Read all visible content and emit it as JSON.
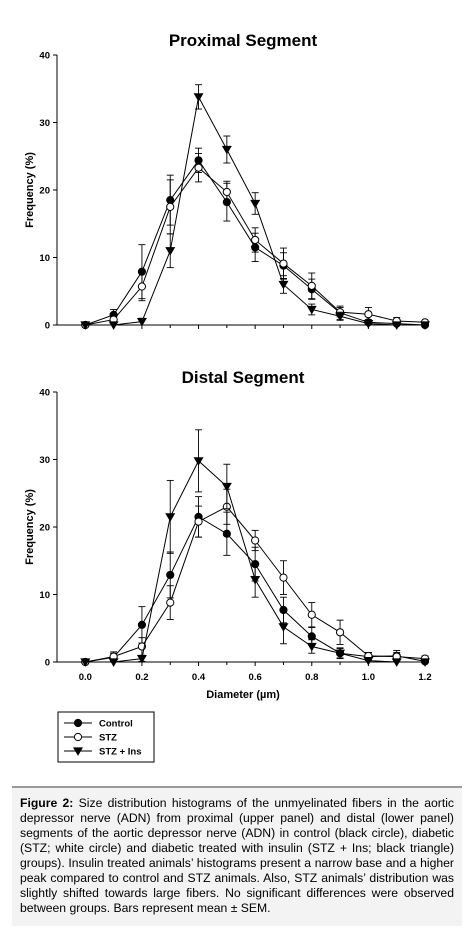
{
  "chart_data": [
    {
      "type": "line",
      "title": "Proximal Segment",
      "xlabel": "Diameter (µm)",
      "ylabel": "Frequency (%)",
      "ylim": [
        0,
        40
      ],
      "xlim": [
        -0.1,
        1.2
      ],
      "yticks": [
        "0",
        "10",
        "20",
        "30",
        "40"
      ],
      "xticks": [],
      "error_bars": true,
      "x": [
        0.0,
        0.1,
        0.2,
        0.3,
        0.4,
        0.5,
        0.6,
        0.7,
        0.8,
        0.9,
        1.0,
        1.1,
        1.2
      ],
      "series": [
        {
          "name": "Control",
          "marker": "filled-circle",
          "values": [
            0,
            1.5,
            7.9,
            18.5,
            24.4,
            18.2,
            11.5,
            8.8,
            5.3,
            1.8,
            0.4,
            0.2,
            0
          ],
          "errors": [
            0.3,
            0.8,
            4.0,
            3.7,
            1.8,
            2.8,
            2.1,
            1.9,
            1.5,
            1.0,
            0.4,
            0.3,
            0.2
          ]
        },
        {
          "name": "STZ",
          "marker": "open-circle",
          "values": [
            0,
            0.8,
            5.7,
            17.5,
            23.3,
            19.7,
            12.6,
            9.1,
            5.8,
            1.9,
            1.6,
            0.6,
            0.4
          ],
          "errors": [
            0.3,
            0.8,
            2.1,
            4.0,
            2.1,
            1.6,
            1.8,
            2.3,
            1.9,
            0.7,
            1.0,
            0.5,
            0.3
          ]
        },
        {
          "name": "STZ + Ins",
          "marker": "filled-triangle-down",
          "values": [
            0,
            0,
            0.5,
            11.0,
            33.8,
            26.0,
            18.0,
            6.0,
            2.3,
            1.3,
            0.2,
            0,
            0
          ],
          "errors": [
            0.2,
            0.2,
            0.5,
            2.5,
            1.8,
            2.0,
            1.6,
            1.3,
            0.8,
            0.6,
            0.3,
            0.2,
            0.2
          ]
        }
      ]
    },
    {
      "type": "line",
      "title": "Distal Segment",
      "xlabel": "Diameter (µm)",
      "ylabel": "Frequency (%)",
      "ylim": [
        0,
        40
      ],
      "xlim": [
        -0.1,
        1.2
      ],
      "yticks": [
        "0",
        "10",
        "20",
        "30",
        "40"
      ],
      "xticks": [
        "0.0",
        "0.2",
        "0.4",
        "0.6",
        "0.8",
        "1.0",
        "1.2"
      ],
      "error_bars": true,
      "x": [
        0.0,
        0.1,
        0.2,
        0.3,
        0.4,
        0.5,
        0.6,
        0.7,
        0.8,
        0.9,
        1.0,
        1.1,
        1.2
      ],
      "series": [
        {
          "name": "Control",
          "marker": "filled-circle",
          "values": [
            0,
            0.7,
            5.5,
            12.9,
            21.5,
            19.0,
            14.5,
            7.7,
            3.8,
            1.3,
            0.8,
            0.9,
            0.1
          ],
          "errors": [
            0.2,
            0.6,
            2.7,
            3.4,
            3.0,
            3.2,
            2.5,
            1.9,
            1.3,
            0.8,
            0.6,
            0.8,
            0.3
          ]
        },
        {
          "name": "STZ",
          "marker": "open-circle",
          "values": [
            0,
            0.8,
            2.3,
            8.8,
            20.8,
            23.0,
            18.0,
            12.5,
            7.0,
            4.4,
            0.9,
            0.8,
            0.5
          ],
          "errors": [
            0.2,
            0.7,
            1.3,
            2.5,
            2.3,
            2.6,
            1.5,
            2.5,
            1.8,
            1.8,
            0.5,
            0.6,
            0.4
          ]
        },
        {
          "name": "STZ + Ins",
          "marker": "filled-triangle-down",
          "values": [
            0,
            0,
            0.5,
            21.5,
            29.8,
            26.0,
            12.2,
            5.2,
            2.3,
            1.3,
            0.2,
            0,
            0
          ],
          "errors": [
            0.2,
            0.2,
            0.4,
            5.4,
            4.6,
            3.3,
            2.6,
            2.5,
            1.0,
            0.7,
            0.3,
            0.2,
            0.2
          ]
        }
      ]
    }
  ],
  "legend": {
    "placement": "bottom-left",
    "items": [
      {
        "label": "Control",
        "marker": "filled-circle"
      },
      {
        "label": "STZ",
        "marker": "open-circle"
      },
      {
        "label": "STZ + Ins",
        "marker": "filled-triangle-down"
      }
    ]
  },
  "caption": {
    "label": "Figure 2:",
    "text": "Size distribution histograms of the unmyelinated fibers in the aortic depressor nerve (ADN) from proximal (upper panel) and distal (lower panel) segments of the aortic depressor nerve (ADN) in control (black circle), diabetic (STZ; white circle) and diabetic treated with insulin (STZ + Ins; black triangle) groups). Insulin treated animals’ histograms present a narrow base and a higher peak compared to control and STZ animals. Also, STZ animals’ distribution was slightly shifted towards large fibers. No significant differences were observed between groups. Bars represent mean ± SEM."
  }
}
